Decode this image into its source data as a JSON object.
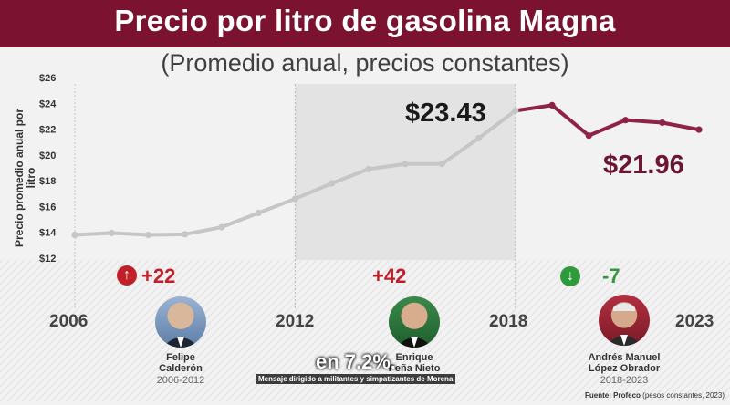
{
  "header": {
    "title": "Precio por litro de gasolina Magna",
    "subtitle": "(Promedio anual, precios constantes)"
  },
  "chart_data": {
    "type": "line",
    "title": "Precio por litro de gasolina Magna",
    "subtitle": "(Promedio anual, precios constantes)",
    "ylabel": "Precio promedio anual por litro",
    "xlabel": "",
    "x": [
      2006,
      2007,
      2008,
      2009,
      2010,
      2011,
      2012,
      2013,
      2014,
      2015,
      2016,
      2017,
      2018,
      2019,
      2020,
      2021,
      2022,
      2023
    ],
    "values": [
      13.8,
      13.95,
      13.8,
      13.85,
      14.4,
      15.5,
      16.6,
      17.8,
      18.9,
      19.3,
      19.3,
      21.3,
      23.43,
      23.85,
      21.5,
      22.7,
      22.5,
      21.96
    ],
    "ylim": [
      12,
      26
    ],
    "yticks": [
      "$12",
      "$14",
      "$16",
      "$18",
      "$20",
      "$22",
      "$24",
      "$26"
    ],
    "xticks": [
      "2006",
      "2012",
      "2018",
      "2023"
    ],
    "grid": false,
    "segment_colors": {
      "to_2018": "#c6c6c6",
      "from_2018": "#8e2248"
    },
    "highlight_range": [
      2012,
      2018
    ],
    "annotations": [
      {
        "label": "$23.43"
      },
      {
        "label": "$21.96"
      }
    ]
  },
  "periods": [
    {
      "change": "+22",
      "direction": "up",
      "name_line1": "Felipe",
      "name_line2": "Calderón",
      "term": "2006-2012",
      "color": "#c0202a"
    },
    {
      "change": "+42",
      "direction": "up",
      "name_line1": "Enrique",
      "name_line2": "Peña Nieto",
      "term": "",
      "color": "#c0202a"
    },
    {
      "change": "-7",
      "direction": "down",
      "name_line1": "Andrés Manuel",
      "name_line2": "López Obrador",
      "term": "2018-2023",
      "color": "#2e9a3c"
    }
  ],
  "captions": {
    "big": "en 7.2%.",
    "small": "Mensaje dirigido a militantes y simpatizantes de Morena"
  },
  "source": {
    "label": "Fuente: Profeco",
    "note": "(pesos constantes, 2023)"
  },
  "icons": {
    "up": "arrow-up-icon",
    "down": "arrow-down-icon"
  }
}
